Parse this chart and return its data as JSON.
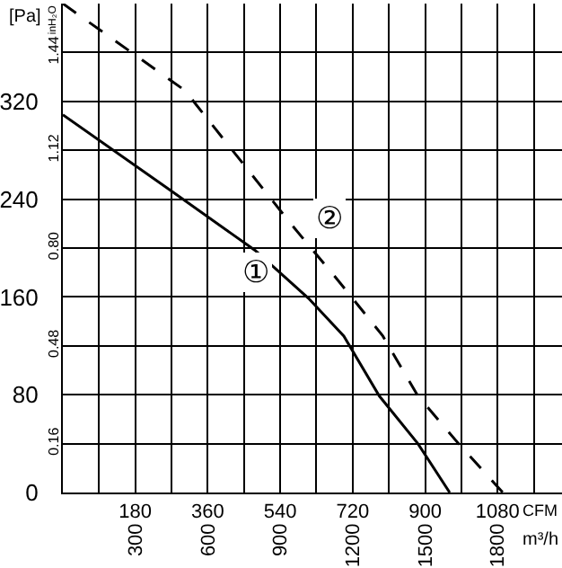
{
  "chart_data": {
    "type": "line",
    "xlabel": "CFM",
    "x2label": "m³/h",
    "ylabel": "[Pa]",
    "y2label": "inH₂O",
    "xlim": [
      0,
      1240
    ],
    "x2lim": [
      0,
      2067
    ],
    "ylim": [
      0,
      400
    ],
    "y2lim": [
      0,
      1.6
    ],
    "xticks": [
      {
        "value": 90,
        "label": null
      },
      180,
      {
        "value": 270,
        "label": null
      },
      360,
      {
        "value": 450,
        "label": null
      },
      540,
      {
        "value": 630,
        "label": null
      },
      720,
      {
        "value": 810,
        "label": null
      },
      900,
      {
        "value": 990,
        "label": null
      },
      1080,
      {
        "value": 1170,
        "label": null
      }
    ],
    "x2ticks": [
      300,
      600,
      900,
      1200,
      1500,
      1800
    ],
    "yticks": [
      0,
      {
        "value": 40,
        "label": null
      },
      80,
      {
        "value": 120,
        "label": null
      },
      160,
      {
        "value": 200,
        "label": null
      },
      240,
      {
        "value": 280,
        "label": null
      },
      320,
      {
        "value": 360,
        "label": null
      }
    ],
    "y2ticks": [
      {
        "value": 0.16,
        "label": "0.16"
      },
      {
        "value": 0.48,
        "label": "0.48"
      },
      {
        "value": 0.8,
        "label": "0.80"
      },
      {
        "value": 1.12,
        "label": "1.12"
      },
      {
        "value": 1.44,
        "label": "1.44"
      }
    ],
    "grid": true,
    "marker": "none",
    "series": [
      {
        "color": "#000000",
        "line_style": "solid",
        "x": [
          0,
          268,
          478,
          610,
          698,
          786,
          882,
          961
        ],
        "values": [
          309,
          247,
          198,
          159,
          128,
          79,
          40,
          0
        ]
      },
      {
        "color": "#000000",
        "line_style": "dashed",
        "x": [
          0,
          303,
          566,
          685,
          795,
          882,
          983,
          1093
        ],
        "values": [
          400,
          329,
          220,
          173,
          128,
          79,
          40,
          0
        ]
      }
    ],
    "annotations": [
      {
        "text": "①",
        "x": 478,
        "y": 180
      },
      {
        "text": "②",
        "x": 663,
        "y": 224
      }
    ]
  }
}
